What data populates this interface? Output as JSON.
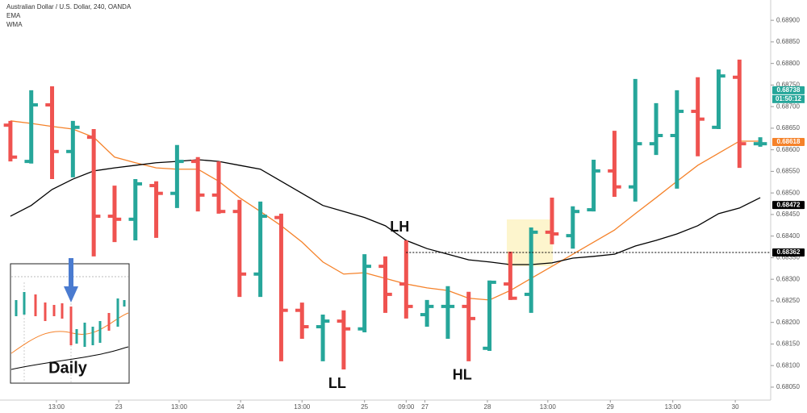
{
  "chart_data": {
    "type": "ohlc",
    "title": "Australian Dollar / U.S. Dollar, 240, OANDA",
    "ohlc": {
      "open": [
        0.68657,
        0.68573,
        0.68704,
        0.68596,
        0.68629,
        0.68446,
        0.68439,
        0.68517,
        0.68499,
        0.68573,
        0.68495,
        0.68457,
        0.68312,
        0.68443,
        0.68228,
        0.6819,
        0.68203,
        0.68185,
        0.6833,
        0.68289,
        0.68218,
        0.68237,
        0.68237,
        0.6814,
        0.68289,
        0.68265,
        0.68409,
        0.68401,
        0.68461,
        0.68551,
        0.68514,
        0.68614,
        0.68633,
        0.68689,
        0.68652,
        0.68768,
        0.68614
      ],
      "high": [
        0.68667,
        0.68738,
        0.68747,
        0.68667,
        0.68648,
        0.68517,
        0.68532,
        0.68527,
        0.68611,
        0.68583,
        0.68573,
        0.68484,
        0.6848,
        0.68452,
        0.68246,
        0.68218,
        0.68228,
        0.68358,
        0.68353,
        0.6839,
        0.68252,
        0.68284,
        0.68271,
        0.68297,
        0.68364,
        0.6842,
        0.68489,
        0.68469,
        0.68577,
        0.68644,
        0.68764,
        0.68708,
        0.68738,
        0.68768,
        0.68786,
        0.68809,
        0.68629
      ],
      "low": [
        0.68573,
        0.68568,
        0.68532,
        0.68536,
        0.68353,
        0.68386,
        0.6839,
        0.68396,
        0.68465,
        0.68457,
        0.68452,
        0.68259,
        0.68259,
        0.6811,
        0.68162,
        0.6811,
        0.68091,
        0.68177,
        0.68222,
        0.68209,
        0.6819,
        0.68162,
        0.6811,
        0.68134,
        0.68252,
        0.68222,
        0.68381,
        0.68371,
        0.68457,
        0.68491,
        0.6848,
        0.68588,
        0.6851,
        0.68585,
        0.68648,
        0.68558,
        0.68607
      ],
      "close": [
        0.68583,
        0.68704,
        0.68596,
        0.68652,
        0.68446,
        0.68439,
        0.68521,
        0.68499,
        0.68573,
        0.68495,
        0.68457,
        0.68312,
        0.68446,
        0.68228,
        0.6819,
        0.68203,
        0.68185,
        0.6833,
        0.68265,
        0.68237,
        0.68237,
        0.68237,
        0.68209,
        0.68293,
        0.68256,
        0.68409,
        0.68405,
        0.68457,
        0.68551,
        0.68514,
        0.68614,
        0.68633,
        0.68689,
        0.68671,
        0.68771,
        0.68614,
        0.68614
      ]
    },
    "up_color": "#26a69a",
    "down_color": "#ef5350",
    "series": [
      {
        "name": "EMA",
        "color": "#f5822a",
        "values": [
          0.68667,
          0.68661,
          0.68654,
          0.68648,
          0.68629,
          0.68583,
          0.6857,
          0.68558,
          0.68555,
          0.68555,
          0.68527,
          0.68489,
          0.68457,
          0.68424,
          0.68386,
          0.6834,
          0.68312,
          0.68315,
          0.68302,
          0.68289,
          0.6828,
          0.68274,
          0.68256,
          0.68252,
          0.68274,
          0.68302,
          0.6833,
          0.68358,
          0.68386,
          0.68414,
          0.68452,
          0.68489,
          0.68527,
          0.68564,
          0.68592,
          0.6862,
          0.6862
        ]
      },
      {
        "name": "WMA",
        "color": "#000000",
        "values": [
          0.68446,
          0.68471,
          0.68508,
          0.68532,
          0.68551,
          0.68558,
          0.68564,
          0.6857,
          0.68573,
          0.68577,
          0.68573,
          0.68564,
          0.68555,
          0.68527,
          0.68499,
          0.68471,
          0.68457,
          0.68443,
          0.68424,
          0.6839,
          0.68371,
          0.68358,
          0.68345,
          0.6834,
          0.68334,
          0.68334,
          0.68338,
          0.68349,
          0.68353,
          0.68358,
          0.68377,
          0.6839,
          0.68405,
          0.68424,
          0.68452,
          0.68465,
          0.68489
        ]
      }
    ],
    "xlim": [
      -0.5,
      36.5
    ],
    "xticks": [
      {
        "value": 2.21,
        "label": "13:00"
      },
      {
        "value": 5.2,
        "label": "23"
      },
      {
        "value": 8.1,
        "label": "13:00"
      },
      {
        "value": 11.05,
        "label": "24"
      },
      {
        "value": 14.0,
        "label": "13:00"
      },
      {
        "value": 17.0,
        "label": "25"
      },
      {
        "value": 19.0,
        "label": "09:00"
      },
      {
        "value": 19.9,
        "label": "27"
      },
      {
        "value": 22.9,
        "label": "28"
      },
      {
        "value": 25.8,
        "label": "13:00"
      },
      {
        "value": 28.8,
        "label": "29"
      },
      {
        "value": 31.8,
        "label": "13:00"
      },
      {
        "value": 34.8,
        "label": "30"
      }
    ],
    "ylim": [
      0.6802,
      0.68947
    ],
    "yticks": [
      {
        "value": 0.6805,
        "label": "0.68050"
      },
      {
        "value": 0.681,
        "label": "0.68100"
      },
      {
        "value": 0.6815,
        "label": "0.68150"
      },
      {
        "value": 0.682,
        "label": "0.68200"
      },
      {
        "value": 0.6825,
        "label": "0.68250"
      },
      {
        "value": 0.683,
        "label": "0.68300"
      },
      {
        "value": 0.6835,
        "label": "0.68350"
      },
      {
        "value": 0.684,
        "label": "0.68400"
      },
      {
        "value": 0.6845,
        "label": "0.68450"
      },
      {
        "value": 0.685,
        "label": "0.68500"
      },
      {
        "value": 0.6855,
        "label": "0.68550"
      },
      {
        "value": 0.686,
        "label": "0.68600"
      },
      {
        "value": 0.6865,
        "label": "0.68650"
      },
      {
        "value": 0.687,
        "label": "0.68700"
      },
      {
        "value": 0.6875,
        "label": "0.68750"
      },
      {
        "value": 0.688,
        "label": "0.68800"
      },
      {
        "value": 0.6885,
        "label": "0.68850"
      },
      {
        "value": 0.689,
        "label": "0.68900"
      }
    ],
    "price_tags": [
      {
        "value": 0.68738,
        "label": "0.68738",
        "color": "#26a69a"
      },
      {
        "value": 0.68618,
        "label": "0.68618",
        "color": "#f5822a"
      },
      {
        "value": 0.68472,
        "label": "0.68472",
        "color": "#000000"
      },
      {
        "value": 0.68362,
        "label": "0.68362",
        "color": "#000000"
      }
    ],
    "countdown": "01:50:12",
    "annotations": [
      {
        "text": "LH",
        "x": 19,
        "at": "above"
      },
      {
        "text": "LL",
        "x": 16,
        "at": "below"
      },
      {
        "text": "HL",
        "x": 22,
        "at": "below"
      }
    ],
    "inset_label": "Daily"
  }
}
